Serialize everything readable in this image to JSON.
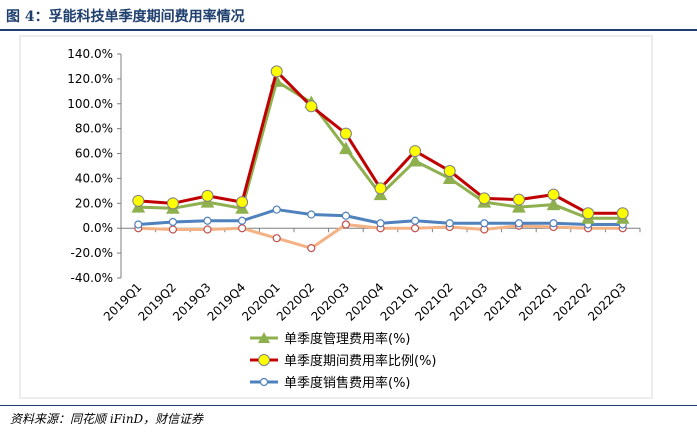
{
  "figure": {
    "title": "图 4：孚能科技单季度期间费用率情况",
    "source": "资料来源：同花顺 iFinD，财信证券"
  },
  "chart_data": {
    "type": "line",
    "categories": [
      "2019Q1",
      "2019Q2",
      "2019Q3",
      "2019Q4",
      "2020Q1",
      "2020Q2",
      "2020Q3",
      "2020Q4",
      "2021Q1",
      "2021Q2",
      "2021Q3",
      "2021Q4",
      "2022Q1",
      "2022Q2",
      "2022Q3"
    ],
    "ylim": [
      -40,
      140
    ],
    "y_ticks": [
      -40,
      -20,
      0,
      20,
      40,
      60,
      80,
      100,
      120,
      140
    ],
    "y_tick_labels": [
      "-40.0%",
      "-20.0%",
      "0.0%",
      "20.0%",
      "40.0%",
      "60.0%",
      "80.0%",
      "100.0%",
      "120.0%",
      "140.0%"
    ],
    "grid": false,
    "legend_position": "bottom",
    "series": [
      {
        "name": "单季度管理费用率(%)",
        "color": "#8fb04f",
        "marker": "triangle",
        "values": [
          17,
          16,
          21,
          16,
          118,
          101,
          64,
          27,
          54,
          40,
          21,
          17,
          19,
          8,
          8
        ]
      },
      {
        "name": "单季度期间费用率比例(%)",
        "color": "#c00000",
        "marker": "circle-yellow",
        "values": [
          22,
          20,
          26,
          21,
          126,
          98,
          76,
          32,
          62,
          46,
          24,
          23,
          27,
          12,
          12
        ]
      },
      {
        "name": "单季度销售费用率(%)",
        "color": "#4f81bd",
        "marker": "circle-white",
        "values": [
          3,
          5,
          6,
          6,
          15,
          11,
          10,
          4,
          6,
          4,
          4,
          4,
          4,
          3,
          3
        ]
      },
      {
        "name": "",
        "color": "#f4b183",
        "marker": "circle-white",
        "values": [
          0,
          -1,
          -1,
          0,
          -8,
          -16,
          3,
          0,
          0,
          1,
          -1,
          2,
          1,
          0,
          0
        ]
      }
    ]
  }
}
